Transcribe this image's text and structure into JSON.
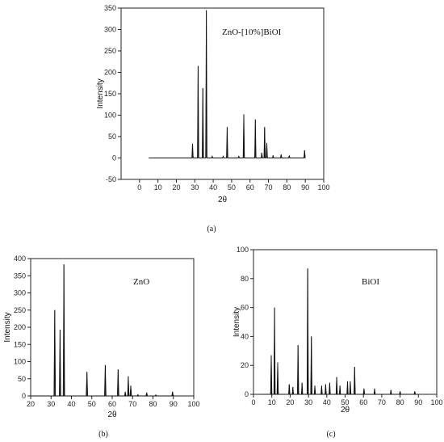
{
  "figure": {
    "captions": [
      "(a)",
      "(b)",
      "(c)"
    ]
  },
  "chart_data": [
    {
      "type": "line",
      "panel": "a",
      "title": "",
      "annotation": "ZnO-[10%]BiOI",
      "xlabel": "2θ",
      "ylabel": "Intensity",
      "xlim": [
        -10,
        100
      ],
      "ylim": [
        -50,
        350
      ],
      "xticks": [
        0,
        10,
        20,
        30,
        40,
        50,
        60,
        70,
        80,
        90,
        100
      ],
      "yticks": [
        -50,
        0,
        50,
        100,
        150,
        200,
        250,
        300,
        350
      ],
      "x_start": 5,
      "x_end": 90,
      "peaks": [
        {
          "x": 28.8,
          "y": 33
        },
        {
          "x": 31.8,
          "y": 215
        },
        {
          "x": 34.4,
          "y": 163
        },
        {
          "x": 36.3,
          "y": 345
        },
        {
          "x": 39.5,
          "y": 4
        },
        {
          "x": 45.4,
          "y": 4
        },
        {
          "x": 47.6,
          "y": 72
        },
        {
          "x": 53.9,
          "y": 4
        },
        {
          "x": 56.6,
          "y": 102
        },
        {
          "x": 62.9,
          "y": 90
        },
        {
          "x": 66.4,
          "y": 12
        },
        {
          "x": 67.9,
          "y": 72
        },
        {
          "x": 69.1,
          "y": 35
        },
        {
          "x": 72.5,
          "y": 6
        },
        {
          "x": 76.9,
          "y": 8
        },
        {
          "x": 81.3,
          "y": 5
        },
        {
          "x": 89.6,
          "y": 18
        }
      ]
    },
    {
      "type": "line",
      "panel": "b",
      "title": "",
      "annotation": "ZnO",
      "xlabel": "2θ",
      "ylabel": "Intensity",
      "xlim": [
        20,
        100
      ],
      "ylim": [
        0,
        400
      ],
      "xticks": [
        20,
        30,
        40,
        50,
        60,
        70,
        80,
        90,
        100
      ],
      "yticks": [
        0,
        50,
        100,
        150,
        200,
        250,
        300,
        350,
        400
      ],
      "x_start": 20,
      "x_end": 90,
      "peaks": [
        {
          "x": 31.8,
          "y": 250
        },
        {
          "x": 34.4,
          "y": 193
        },
        {
          "x": 36.3,
          "y": 383
        },
        {
          "x": 47.6,
          "y": 70
        },
        {
          "x": 56.6,
          "y": 90
        },
        {
          "x": 62.9,
          "y": 77
        },
        {
          "x": 66.4,
          "y": 12
        },
        {
          "x": 67.9,
          "y": 57
        },
        {
          "x": 69.1,
          "y": 30
        },
        {
          "x": 72.6,
          "y": 4
        },
        {
          "x": 76.9,
          "y": 10
        },
        {
          "x": 81.4,
          "y": 3
        },
        {
          "x": 89.6,
          "y": 12
        }
      ]
    },
    {
      "type": "line",
      "panel": "c",
      "title": "",
      "annotation": "BiOI",
      "xlabel": "2θ",
      "ylabel": "Intensity",
      "xlim": [
        0,
        100
      ],
      "ylim": [
        0,
        100
      ],
      "xticks": [
        0,
        10,
        20,
        30,
        40,
        50,
        60,
        70,
        80,
        90,
        100
      ],
      "yticks": [
        0,
        20,
        40,
        60,
        80,
        100
      ],
      "x_start": 5,
      "x_end": 90,
      "peaks": [
        {
          "x": 9.7,
          "y": 27
        },
        {
          "x": 11.5,
          "y": 60
        },
        {
          "x": 13.2,
          "y": 22
        },
        {
          "x": 19.5,
          "y": 7
        },
        {
          "x": 21.5,
          "y": 5
        },
        {
          "x": 24.3,
          "y": 34
        },
        {
          "x": 26.5,
          "y": 8
        },
        {
          "x": 29.6,
          "y": 87
        },
        {
          "x": 31.6,
          "y": 40
        },
        {
          "x": 33.5,
          "y": 6
        },
        {
          "x": 37.2,
          "y": 6
        },
        {
          "x": 39.4,
          "y": 7
        },
        {
          "x": 41.6,
          "y": 8
        },
        {
          "x": 45.4,
          "y": 12
        },
        {
          "x": 47.2,
          "y": 6
        },
        {
          "x": 51.3,
          "y": 9
        },
        {
          "x": 52.8,
          "y": 9
        },
        {
          "x": 55.2,
          "y": 19
        },
        {
          "x": 60.3,
          "y": 4
        },
        {
          "x": 66.1,
          "y": 4
        },
        {
          "x": 75.0,
          "y": 3
        },
        {
          "x": 80.0,
          "y": 2
        },
        {
          "x": 88.0,
          "y": 2
        }
      ]
    }
  ]
}
